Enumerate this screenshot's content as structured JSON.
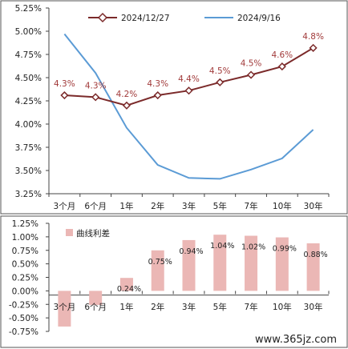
{
  "colors": {
    "line_series_1": "#7b2a2a",
    "line_series_2": "#5b9bd5",
    "bar_series": "#ebb7b5",
    "point_label": "#a13a3a",
    "frame": "#555555"
  },
  "watermark": "www.365jz.com",
  "chart_data": [
    {
      "type": "line",
      "title": "",
      "categories": [
        "3个月",
        "6个月",
        "1年",
        "2年",
        "3年",
        "5年",
        "7年",
        "10年",
        "30年"
      ],
      "ylim": [
        3.25,
        5.25
      ],
      "yticks": [
        "3.25%",
        "3.50%",
        "3.75%",
        "4.00%",
        "4.25%",
        "4.50%",
        "4.75%",
        "5.00%",
        "5.25%"
      ],
      "grid": false,
      "legend_position": "top",
      "series": [
        {
          "name": "2024/12/27",
          "marker": "diamond",
          "values": [
            4.31,
            4.29,
            4.2,
            4.31,
            4.36,
            4.45,
            4.53,
            4.62,
            4.82
          ],
          "labels": [
            "4.3%",
            "4.3%",
            "4.2%",
            "4.3%",
            "4.4%",
            "4.5%",
            "4.5%",
            "4.6%",
            "4.8%"
          ]
        },
        {
          "name": "2024/9/16",
          "marker": "none",
          "values": [
            4.97,
            4.55,
            3.96,
            3.56,
            3.42,
            3.41,
            3.51,
            3.63,
            3.94
          ]
        }
      ]
    },
    {
      "type": "bar",
      "title": "",
      "categories": [
        "3个月",
        "6个月",
        "1年",
        "2年",
        "3年",
        "5年",
        "7年",
        "10年",
        "30年"
      ],
      "ylim": [
        -0.75,
        1.25
      ],
      "yticks": [
        "-0.75%",
        "-0.50%",
        "-0.25%",
        "0.00%",
        "0.25%",
        "0.50%",
        "0.75%",
        "1.00%",
        "1.25%"
      ],
      "grid": false,
      "legend_position": "top-left",
      "series": [
        {
          "name": "曲线利差",
          "values": [
            -0.66,
            -0.26,
            0.24,
            0.75,
            0.94,
            1.04,
            1.02,
            0.99,
            0.88
          ],
          "labels": [
            "",
            "",
            "0.24%",
            "0.75%",
            "0.94%",
            "1.04%",
            "1.02%",
            "0.99%",
            "0.88%"
          ]
        }
      ]
    }
  ]
}
